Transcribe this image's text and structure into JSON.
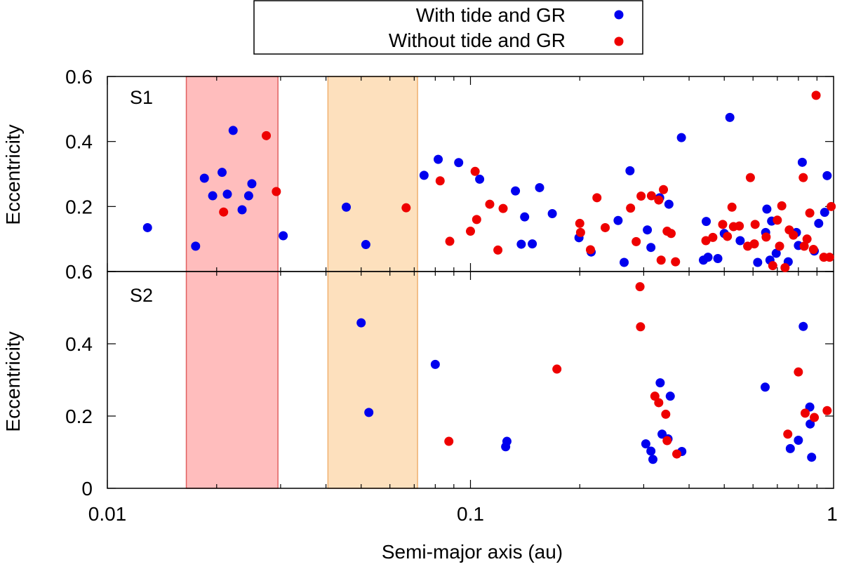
{
  "chart_data": {
    "type": "scatter",
    "x_scale": "log",
    "xlim": [
      0.01,
      1
    ],
    "xlabel": "Semi-major axis (au)",
    "x_ticks": [
      {
        "value": 0.01,
        "label": "0.01"
      },
      {
        "value": 0.1,
        "label": "0.1"
      },
      {
        "value": 1,
        "label": "1"
      }
    ],
    "legend": {
      "position": "top-center",
      "entries": [
        {
          "label": "With tide and GR",
          "color": "#0000ee"
        },
        {
          "label": "Without tide and GR",
          "color": "#ee0000"
        }
      ]
    },
    "shaded_regions": [
      {
        "x0": 0.0165,
        "x1": 0.0295,
        "fill": "#ffbdbd",
        "stroke": "#e06060"
      },
      {
        "x0": 0.0405,
        "x1": 0.0715,
        "fill": "#fde0bd",
        "stroke": "#f0b070"
      }
    ],
    "panels": [
      {
        "label": "S1",
        "ylabel": "Eccentricity",
        "ylim": [
          0,
          0.6
        ],
        "y_ticks": [
          {
            "value": 0.2,
            "label": "0.2"
          },
          {
            "value": 0.4,
            "label": "0.4"
          },
          {
            "value": 0.6,
            "label": "0.6"
          }
        ],
        "series": [
          {
            "name": "With tide and GR",
            "color": "#0000ee",
            "points": [
              [
                0.0129,
                0.135
              ],
              [
                0.0175,
                0.078
              ],
              [
                0.0185,
                0.287
              ],
              [
                0.0195,
                0.233
              ],
              [
                0.0207,
                0.305
              ],
              [
                0.0214,
                0.238
              ],
              [
                0.0222,
                0.434
              ],
              [
                0.0235,
                0.19
              ],
              [
                0.0245,
                0.233
              ],
              [
                0.025,
                0.27
              ],
              [
                0.0305,
                0.11
              ],
              [
                0.0455,
                0.198
              ],
              [
                0.0515,
                0.083
              ],
              [
                0.0745,
                0.296
              ],
              [
                0.0815,
                0.345
              ],
              [
                0.0928,
                0.335
              ],
              [
                0.106,
                0.284
              ],
              [
                0.133,
                0.248
              ],
              [
                0.138,
                0.084
              ],
              [
                0.141,
                0.168
              ],
              [
                0.148,
                0.085
              ],
              [
                0.155,
                0.258
              ],
              [
                0.168,
                0.178
              ],
              [
                0.199,
                0.104
              ],
              [
                0.215,
                0.06
              ],
              [
                0.255,
                0.157
              ],
              [
                0.265,
                0.028
              ],
              [
                0.275,
                0.31
              ],
              [
                0.307,
                0.128
              ],
              [
                0.314,
                0.074
              ],
              [
                0.332,
                0.227
              ],
              [
                0.352,
                0.207
              ],
              [
                0.381,
                0.412
              ],
              [
                0.438,
                0.035
              ],
              [
                0.446,
                0.154
              ],
              [
                0.451,
                0.044
              ],
              [
                0.48,
                0.04
              ],
              [
                0.5,
                0.117
              ],
              [
                0.518,
                0.474
              ],
              [
                0.553,
                0.095
              ],
              [
                0.618,
                0.028
              ],
              [
                0.65,
                0.12
              ],
              [
                0.655,
                0.192
              ],
              [
                0.668,
                0.035
              ],
              [
                0.675,
                0.155
              ],
              [
                0.695,
                0.056
              ],
              [
                0.75,
                0.03
              ],
              [
                0.79,
                0.12
              ],
              [
                0.8,
                0.08
              ],
              [
                0.82,
                0.336
              ],
              [
                0.885,
                0.063
              ],
              [
                0.91,
                0.148
              ],
              [
                0.945,
                0.182
              ],
              [
                0.96,
                0.295
              ]
            ]
          },
          {
            "name": "Without tide and GR",
            "color": "#ee0000",
            "points": [
              [
                0.0209,
                0.183
              ],
              [
                0.0274,
                0.418
              ],
              [
                0.0292,
                0.246
              ],
              [
                0.0665,
                0.196
              ],
              [
                0.0825,
                0.279
              ],
              [
                0.0877,
                0.093
              ],
              [
                0.1,
                0.124
              ],
              [
                0.103,
                0.308
              ],
              [
                0.104,
                0.16
              ],
              [
                0.113,
                0.207
              ],
              [
                0.119,
                0.066
              ],
              [
                0.123,
                0.194
              ],
              [
                0.2,
                0.148
              ],
              [
                0.201,
                0.12
              ],
              [
                0.214,
                0.067
              ],
              [
                0.223,
                0.227
              ],
              [
                0.235,
                0.135
              ],
              [
                0.276,
                0.195
              ],
              [
                0.286,
                0.092
              ],
              [
                0.295,
                0.232
              ],
              [
                0.315,
                0.233
              ],
              [
                0.33,
                0.22
              ],
              [
                0.335,
                0.035
              ],
              [
                0.34,
                0.252
              ],
              [
                0.348,
                0.124
              ],
              [
                0.357,
                0.117
              ],
              [
                0.367,
                0.03
              ],
              [
                0.445,
                0.095
              ],
              [
                0.465,
                0.105
              ],
              [
                0.495,
                0.145
              ],
              [
                0.51,
                0.108
              ],
              [
                0.525,
                0.198
              ],
              [
                0.53,
                0.138
              ],
              [
                0.55,
                0.14
              ],
              [
                0.58,
                0.078
              ],
              [
                0.59,
                0.289
              ],
              [
                0.605,
                0.085
              ],
              [
                0.608,
                0.145
              ],
              [
                0.652,
                0.106
              ],
              [
                0.68,
                0.018
              ],
              [
                0.7,
                0.158
              ],
              [
                0.71,
                0.078
              ],
              [
                0.72,
                0.202
              ],
              [
                0.735,
                0.012
              ],
              [
                0.755,
                0.128
              ],
              [
                0.775,
                0.112
              ],
              [
                0.825,
                0.289
              ],
              [
                0.83,
                0.078
              ],
              [
                0.845,
                0.1
              ],
              [
                0.86,
                0.18
              ],
              [
                0.88,
                0.068
              ],
              [
                0.895,
                0.542
              ],
              [
                0.94,
                0.044
              ],
              [
                0.975,
                0.044
              ],
              [
                0.985,
                0.2
              ]
            ]
          }
        ]
      },
      {
        "label": "S2",
        "ylabel": "Eccentricity",
        "ylim": [
          0,
          0.6
        ],
        "y_ticks": [
          {
            "value": 0,
            "label": "0"
          },
          {
            "value": 0.2,
            "label": "0.2"
          },
          {
            "value": 0.4,
            "label": "0.4"
          },
          {
            "value": 0.6,
            "label": "0.6"
          }
        ],
        "series": [
          {
            "name": "With tide and GR",
            "color": "#0000ee",
            "points": [
              [
                0.05,
                0.458
              ],
              [
                0.0525,
                0.21
              ],
              [
                0.08,
                0.343
              ],
              [
                0.125,
                0.115
              ],
              [
                0.126,
                0.13
              ],
              [
                0.304,
                0.123
              ],
              [
                0.314,
                0.103
              ],
              [
                0.318,
                0.08
              ],
              [
                0.333,
                0.292
              ],
              [
                0.337,
                0.15
              ],
              [
                0.35,
                0.137
              ],
              [
                0.355,
                0.255
              ],
              [
                0.382,
                0.102
              ],
              [
                0.648,
                0.28
              ],
              [
                0.76,
                0.11
              ],
              [
                0.8,
                0.133
              ],
              [
                0.825,
                0.448
              ],
              [
                0.86,
                0.225
              ],
              [
                0.862,
                0.178
              ],
              [
                0.87,
                0.086
              ]
            ]
          },
          {
            "name": "Without tide and GR",
            "color": "#ee0000",
            "points": [
              [
                0.0872,
                0.13
              ],
              [
                0.173,
                0.33
              ],
              [
                0.293,
                0.558
              ],
              [
                0.294,
                0.447
              ],
              [
                0.322,
                0.255
              ],
              [
                0.33,
                0.237
              ],
              [
                0.345,
                0.205
              ],
              [
                0.348,
                0.132
              ],
              [
                0.37,
                0.095
              ],
              [
                0.748,
                0.15
              ],
              [
                0.8,
                0.322
              ],
              [
                0.835,
                0.208
              ],
              [
                0.885,
                0.196
              ],
              [
                0.96,
                0.215
              ]
            ]
          }
        ]
      }
    ]
  }
}
